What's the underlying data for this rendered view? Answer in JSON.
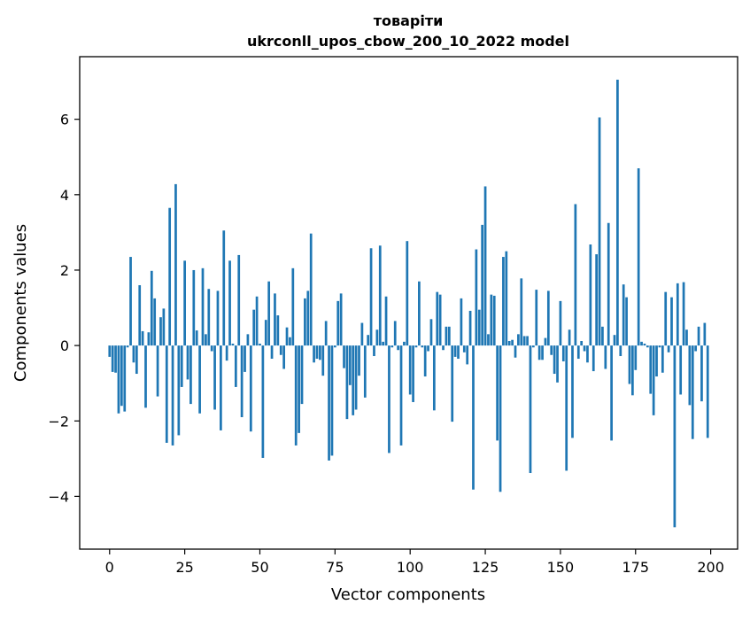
{
  "chart_data": {
    "type": "bar",
    "title_lines": [
      "товаріти",
      "ukrconll_upos_cbow_200_10_2022 model"
    ],
    "xlabel": "Vector components",
    "ylabel": "Components values",
    "xlim": [
      -9.95,
      208.95
    ],
    "ylim": [
      -5.4,
      7.66
    ],
    "x_ticks": [
      0,
      25,
      50,
      75,
      100,
      125,
      150,
      175,
      200
    ],
    "y_ticks": [
      -4,
      -2,
      0,
      2,
      4,
      6
    ],
    "y_tick_labels": [
      "−4",
      "−2",
      "0",
      "2",
      "4",
      "6"
    ],
    "bar_color": "#1f77b4",
    "grid": false,
    "legend": "none",
    "x": [
      0,
      1,
      2,
      3,
      4,
      5,
      6,
      7,
      8,
      9,
      10,
      11,
      12,
      13,
      14,
      15,
      16,
      17,
      18,
      19,
      20,
      21,
      22,
      23,
      24,
      25,
      26,
      27,
      28,
      29,
      30,
      31,
      32,
      33,
      34,
      35,
      36,
      37,
      38,
      39,
      40,
      41,
      42,
      43,
      44,
      45,
      46,
      47,
      48,
      49,
      50,
      51,
      52,
      53,
      54,
      55,
      56,
      57,
      58,
      59,
      60,
      61,
      62,
      63,
      64,
      65,
      66,
      67,
      68,
      69,
      70,
      71,
      72,
      73,
      74,
      75,
      76,
      77,
      78,
      79,
      80,
      81,
      82,
      83,
      84,
      85,
      86,
      87,
      88,
      89,
      90,
      91,
      92,
      93,
      94,
      95,
      96,
      97,
      98,
      99,
      100,
      101,
      102,
      103,
      104,
      105,
      106,
      107,
      108,
      109,
      110,
      111,
      112,
      113,
      114,
      115,
      116,
      117,
      118,
      119,
      120,
      121,
      122,
      123,
      124,
      125,
      126,
      127,
      128,
      129,
      130,
      131,
      132,
      133,
      134,
      135,
      136,
      137,
      138,
      139,
      140,
      141,
      142,
      143,
      144,
      145,
      146,
      147,
      148,
      149,
      150,
      151,
      152,
      153,
      154,
      155,
      156,
      157,
      158,
      159,
      160,
      161,
      162,
      163,
      164,
      165,
      166,
      167,
      168,
      169,
      170,
      171,
      172,
      173,
      174,
      175,
      176,
      177,
      178,
      179,
      180,
      181,
      182,
      183,
      184,
      185,
      186,
      187,
      188,
      189,
      190,
      191,
      192,
      193,
      194,
      195,
      196,
      197,
      198,
      199
    ],
    "values": [
      -0.3,
      -0.7,
      -0.72,
      -1.8,
      -1.6,
      -1.75,
      -0.05,
      2.35,
      -0.45,
      -0.75,
      1.6,
      0.38,
      -1.65,
      0.35,
      1.98,
      1.25,
      -1.35,
      0.75,
      0.98,
      -2.58,
      3.65,
      -2.65,
      4.28,
      -2.38,
      -1.1,
      2.25,
      -0.9,
      -1.55,
      2.0,
      0.4,
      -1.8,
      2.05,
      0.3,
      1.5,
      -0.15,
      -1.7,
      1.45,
      -2.25,
      3.05,
      -0.4,
      2.25,
      0.05,
      -1.1,
      2.4,
      -1.9,
      -0.7,
      0.3,
      -2.28,
      0.95,
      1.3,
      0.05,
      -2.98,
      0.68,
      1.7,
      -0.35,
      1.38,
      0.8,
      -0.25,
      -0.62,
      0.48,
      0.22,
      2.05,
      -2.65,
      -2.32,
      -1.55,
      1.25,
      1.45,
      2.97,
      -0.45,
      -0.35,
      -0.38,
      -0.8,
      0.65,
      -3.05,
      -2.92,
      -0.05,
      1.18,
      1.38,
      -0.6,
      -1.95,
      -1.05,
      -1.85,
      -1.7,
      -0.8,
      0.6,
      -1.38,
      0.28,
      2.58,
      -0.28,
      0.42,
      2.65,
      0.1,
      1.3,
      -2.85,
      -0.05,
      0.65,
      -0.12,
      -2.65,
      0.1,
      2.77,
      -1.3,
      -1.5,
      -0.05,
      1.7,
      -0.05,
      -0.82,
      -0.15,
      0.7,
      -1.72,
      1.42,
      1.35,
      -0.12,
      0.5,
      0.5,
      -2.02,
      -0.3,
      -0.35,
      1.25,
      -0.18,
      -0.5,
      0.92,
      -3.82,
      2.55,
      0.95,
      3.2,
      4.22,
      0.3,
      1.35,
      1.32,
      -2.52,
      -3.88,
      2.35,
      2.5,
      0.12,
      0.15,
      -0.32,
      0.3,
      1.78,
      0.25,
      0.25,
      -3.38,
      -0.05,
      1.48,
      -0.38,
      -0.38,
      0.2,
      1.45,
      -0.25,
      -0.75,
      -0.98,
      1.18,
      -0.42,
      -3.32,
      0.42,
      -2.45,
      3.75,
      -0.35,
      0.12,
      -0.15,
      -0.45,
      2.68,
      -0.68,
      2.42,
      6.05,
      0.5,
      -0.62,
      3.25,
      -2.52,
      0.28,
      7.05,
      -0.28,
      1.62,
      1.28,
      -1.02,
      -1.32,
      -0.65,
      4.7,
      0.1,
      0.05,
      -0.05,
      -1.28,
      -1.85,
      -0.82,
      -0.05,
      -0.72,
      1.42,
      -0.18,
      1.28,
      -4.82,
      1.65,
      -1.3,
      1.68,
      0.42,
      -1.58,
      -2.48,
      -0.15,
      0.5,
      -1.48,
      0.6,
      -2.45
    ]
  }
}
